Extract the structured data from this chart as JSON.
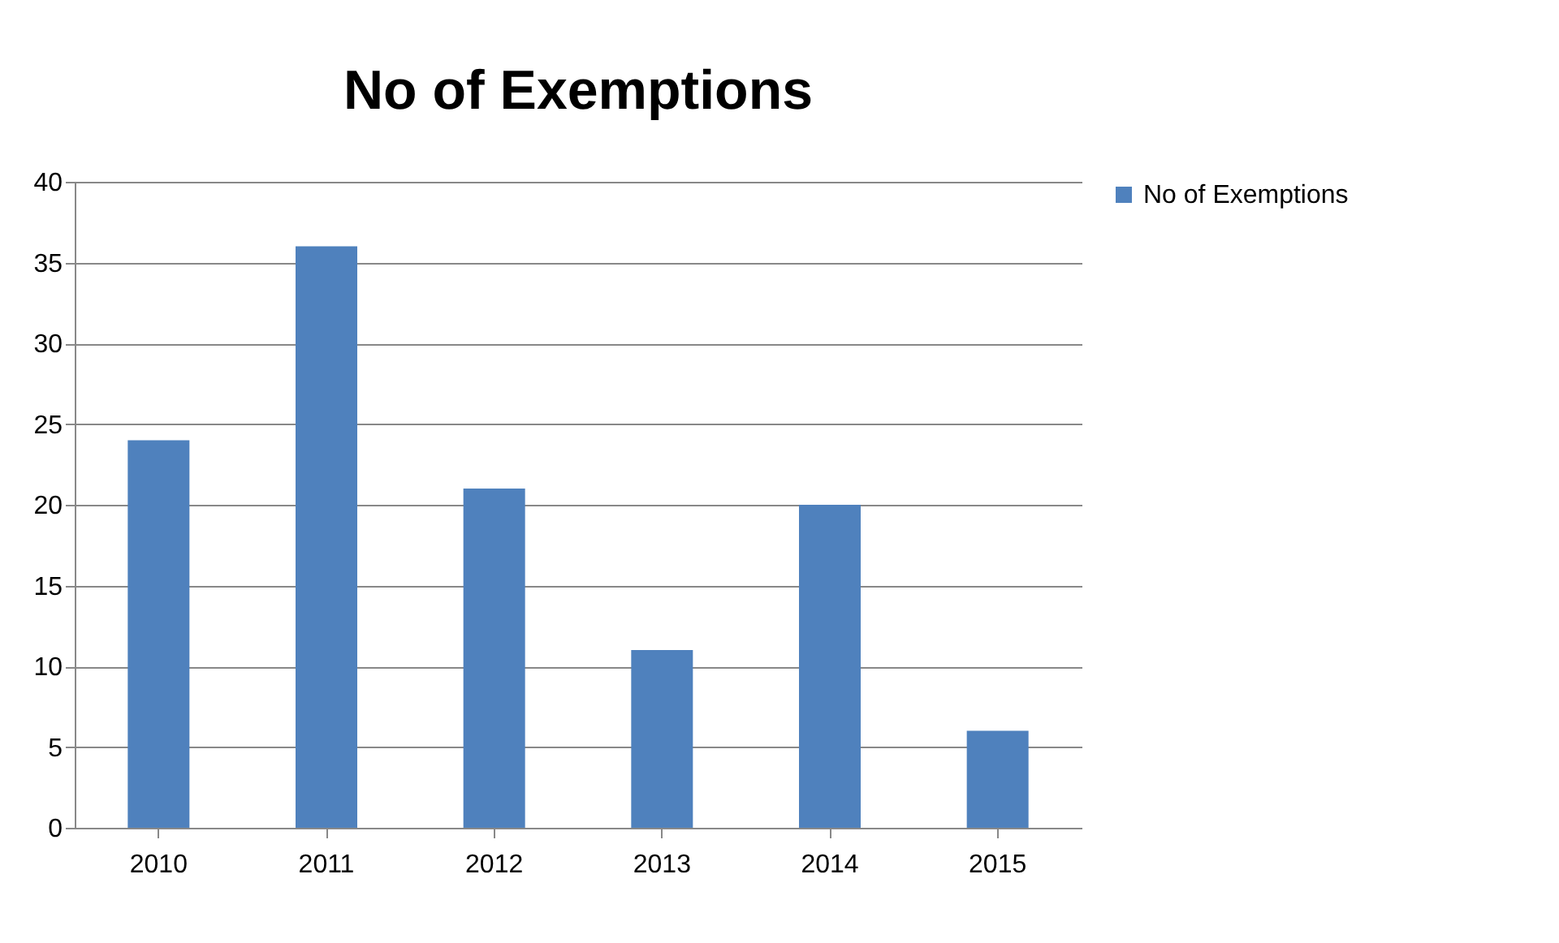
{
  "chart_data": {
    "type": "bar",
    "title": "No of Exemptions",
    "categories": [
      "2010",
      "2011",
      "2012",
      "2013",
      "2014",
      "2015"
    ],
    "series": [
      {
        "name": "No of Exemptions",
        "color": "#4f81bd",
        "values": [
          24,
          36,
          21,
          11,
          20,
          6
        ]
      }
    ],
    "ylim": [
      0,
      40
    ],
    "yticks": [
      0,
      5,
      10,
      15,
      20,
      25,
      30,
      35,
      40
    ],
    "grid": "y",
    "legend": "right"
  }
}
